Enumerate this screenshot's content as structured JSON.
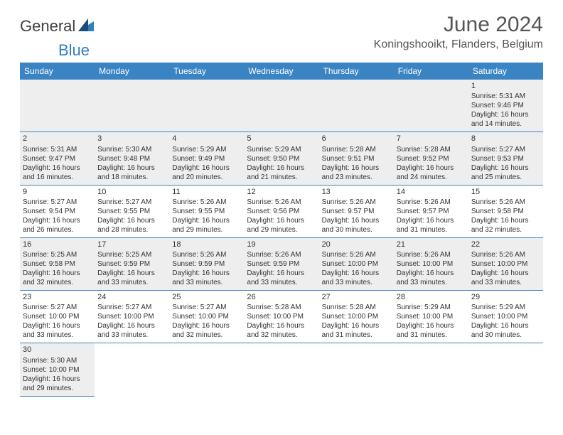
{
  "logo": {
    "text1": "General",
    "text2": "Blue"
  },
  "title": "June 2024",
  "location": "Koningshooikt, Flanders, Belgium",
  "colors": {
    "header_bg": "#3b84c4",
    "header_fg": "#ffffff",
    "grey_row": "#eeeeee",
    "border": "#3b84c4",
    "logo_blue": "#2f7fbf"
  },
  "days": [
    "Sunday",
    "Monday",
    "Tuesday",
    "Wednesday",
    "Thursday",
    "Friday",
    "Saturday"
  ],
  "weeks": [
    [
      null,
      null,
      null,
      null,
      null,
      null,
      {
        "n": "1",
        "sr": "Sunrise: 5:31 AM",
        "ss": "Sunset: 9:46 PM",
        "d1": "Daylight: 16 hours",
        "d2": "and 14 minutes."
      }
    ],
    [
      {
        "n": "2",
        "sr": "Sunrise: 5:31 AM",
        "ss": "Sunset: 9:47 PM",
        "d1": "Daylight: 16 hours",
        "d2": "and 16 minutes."
      },
      {
        "n": "3",
        "sr": "Sunrise: 5:30 AM",
        "ss": "Sunset: 9:48 PM",
        "d1": "Daylight: 16 hours",
        "d2": "and 18 minutes."
      },
      {
        "n": "4",
        "sr": "Sunrise: 5:29 AM",
        "ss": "Sunset: 9:49 PM",
        "d1": "Daylight: 16 hours",
        "d2": "and 20 minutes."
      },
      {
        "n": "5",
        "sr": "Sunrise: 5:29 AM",
        "ss": "Sunset: 9:50 PM",
        "d1": "Daylight: 16 hours",
        "d2": "and 21 minutes."
      },
      {
        "n": "6",
        "sr": "Sunrise: 5:28 AM",
        "ss": "Sunset: 9:51 PM",
        "d1": "Daylight: 16 hours",
        "d2": "and 23 minutes."
      },
      {
        "n": "7",
        "sr": "Sunrise: 5:28 AM",
        "ss": "Sunset: 9:52 PM",
        "d1": "Daylight: 16 hours",
        "d2": "and 24 minutes."
      },
      {
        "n": "8",
        "sr": "Sunrise: 5:27 AM",
        "ss": "Sunset: 9:53 PM",
        "d1": "Daylight: 16 hours",
        "d2": "and 25 minutes."
      }
    ],
    [
      {
        "n": "9",
        "sr": "Sunrise: 5:27 AM",
        "ss": "Sunset: 9:54 PM",
        "d1": "Daylight: 16 hours",
        "d2": "and 26 minutes."
      },
      {
        "n": "10",
        "sr": "Sunrise: 5:27 AM",
        "ss": "Sunset: 9:55 PM",
        "d1": "Daylight: 16 hours",
        "d2": "and 28 minutes."
      },
      {
        "n": "11",
        "sr": "Sunrise: 5:26 AM",
        "ss": "Sunset: 9:55 PM",
        "d1": "Daylight: 16 hours",
        "d2": "and 29 minutes."
      },
      {
        "n": "12",
        "sr": "Sunrise: 5:26 AM",
        "ss": "Sunset: 9:56 PM",
        "d1": "Daylight: 16 hours",
        "d2": "and 29 minutes."
      },
      {
        "n": "13",
        "sr": "Sunrise: 5:26 AM",
        "ss": "Sunset: 9:57 PM",
        "d1": "Daylight: 16 hours",
        "d2": "and 30 minutes."
      },
      {
        "n": "14",
        "sr": "Sunrise: 5:26 AM",
        "ss": "Sunset: 9:57 PM",
        "d1": "Daylight: 16 hours",
        "d2": "and 31 minutes."
      },
      {
        "n": "15",
        "sr": "Sunrise: 5:26 AM",
        "ss": "Sunset: 9:58 PM",
        "d1": "Daylight: 16 hours",
        "d2": "and 32 minutes."
      }
    ],
    [
      {
        "n": "16",
        "sr": "Sunrise: 5:25 AM",
        "ss": "Sunset: 9:58 PM",
        "d1": "Daylight: 16 hours",
        "d2": "and 32 minutes."
      },
      {
        "n": "17",
        "sr": "Sunrise: 5:25 AM",
        "ss": "Sunset: 9:59 PM",
        "d1": "Daylight: 16 hours",
        "d2": "and 33 minutes."
      },
      {
        "n": "18",
        "sr": "Sunrise: 5:26 AM",
        "ss": "Sunset: 9:59 PM",
        "d1": "Daylight: 16 hours",
        "d2": "and 33 minutes."
      },
      {
        "n": "19",
        "sr": "Sunrise: 5:26 AM",
        "ss": "Sunset: 9:59 PM",
        "d1": "Daylight: 16 hours",
        "d2": "and 33 minutes."
      },
      {
        "n": "20",
        "sr": "Sunrise: 5:26 AM",
        "ss": "Sunset: 10:00 PM",
        "d1": "Daylight: 16 hours",
        "d2": "and 33 minutes."
      },
      {
        "n": "21",
        "sr": "Sunrise: 5:26 AM",
        "ss": "Sunset: 10:00 PM",
        "d1": "Daylight: 16 hours",
        "d2": "and 33 minutes."
      },
      {
        "n": "22",
        "sr": "Sunrise: 5:26 AM",
        "ss": "Sunset: 10:00 PM",
        "d1": "Daylight: 16 hours",
        "d2": "and 33 minutes."
      }
    ],
    [
      {
        "n": "23",
        "sr": "Sunrise: 5:27 AM",
        "ss": "Sunset: 10:00 PM",
        "d1": "Daylight: 16 hours",
        "d2": "and 33 minutes."
      },
      {
        "n": "24",
        "sr": "Sunrise: 5:27 AM",
        "ss": "Sunset: 10:00 PM",
        "d1": "Daylight: 16 hours",
        "d2": "and 33 minutes."
      },
      {
        "n": "25",
        "sr": "Sunrise: 5:27 AM",
        "ss": "Sunset: 10:00 PM",
        "d1": "Daylight: 16 hours",
        "d2": "and 32 minutes."
      },
      {
        "n": "26",
        "sr": "Sunrise: 5:28 AM",
        "ss": "Sunset: 10:00 PM",
        "d1": "Daylight: 16 hours",
        "d2": "and 32 minutes."
      },
      {
        "n": "27",
        "sr": "Sunrise: 5:28 AM",
        "ss": "Sunset: 10:00 PM",
        "d1": "Daylight: 16 hours",
        "d2": "and 31 minutes."
      },
      {
        "n": "28",
        "sr": "Sunrise: 5:29 AM",
        "ss": "Sunset: 10:00 PM",
        "d1": "Daylight: 16 hours",
        "d2": "and 31 minutes."
      },
      {
        "n": "29",
        "sr": "Sunrise: 5:29 AM",
        "ss": "Sunset: 10:00 PM",
        "d1": "Daylight: 16 hours",
        "d2": "and 30 minutes."
      }
    ],
    [
      {
        "n": "30",
        "sr": "Sunrise: 5:30 AM",
        "ss": "Sunset: 10:00 PM",
        "d1": "Daylight: 16 hours",
        "d2": "and 29 minutes."
      },
      null,
      null,
      null,
      null,
      null,
      null
    ]
  ]
}
